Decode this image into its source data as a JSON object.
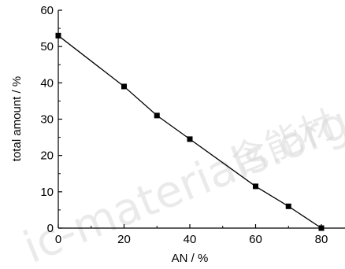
{
  "chart_data": {
    "type": "line",
    "title": "",
    "xlabel": "AN / %",
    "ylabel": "total amount / %",
    "xlim": [
      0,
      85
    ],
    "ylim": [
      0,
      60
    ],
    "x_ticks": [
      0,
      20,
      40,
      60,
      80
    ],
    "y_ticks": [
      0,
      10,
      20,
      30,
      40,
      50,
      60
    ],
    "grid": false,
    "legend": "none",
    "series": [
      {
        "marker": "square",
        "color": "#000000",
        "x": [
          0,
          20,
          30,
          40,
          60,
          70,
          80
        ],
        "y": [
          53,
          39,
          31,
          24.5,
          11.5,
          6,
          0
        ]
      }
    ]
  },
  "watermark": {
    "latin": "ic-materials.org.cn",
    "cjk": "含能材"
  }
}
